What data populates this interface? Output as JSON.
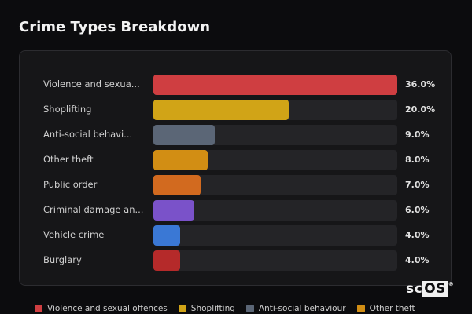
{
  "title": "Crime Types Breakdown",
  "brand": {
    "prefix": "sc",
    "highlight": "OS",
    "mark": "®"
  },
  "chart_data": {
    "type": "bar",
    "orientation": "horizontal",
    "title": "Crime Types Breakdown",
    "unit": "%",
    "xlim": [
      0,
      36
    ],
    "categories": [
      "Violence and sexua...",
      "Shoplifting",
      "Anti-social behavi...",
      "Other theft",
      "Public order",
      "Criminal damage an...",
      "Vehicle crime",
      "Burglary"
    ],
    "values": [
      36.0,
      20.0,
      9.0,
      8.0,
      7.0,
      6.0,
      4.0,
      4.0
    ],
    "value_labels": [
      "36.0%",
      "20.0%",
      "9.0%",
      "8.0%",
      "7.0%",
      "6.0%",
      "4.0%",
      "4.0%"
    ],
    "colors": [
      "#cf3e41",
      "#d1a417",
      "#5b6676",
      "#d28e14",
      "#d26a1f",
      "#7a52c9",
      "#3a78d5",
      "#b52a2a"
    ]
  },
  "legend": [
    {
      "label": "Violence and sexual offences",
      "color": "#cf3e41"
    },
    {
      "label": "Shoplifting",
      "color": "#d1a417"
    },
    {
      "label": "Anti-social behaviour",
      "color": "#5b6676"
    },
    {
      "label": "Other theft",
      "color": "#d28e14"
    }
  ]
}
